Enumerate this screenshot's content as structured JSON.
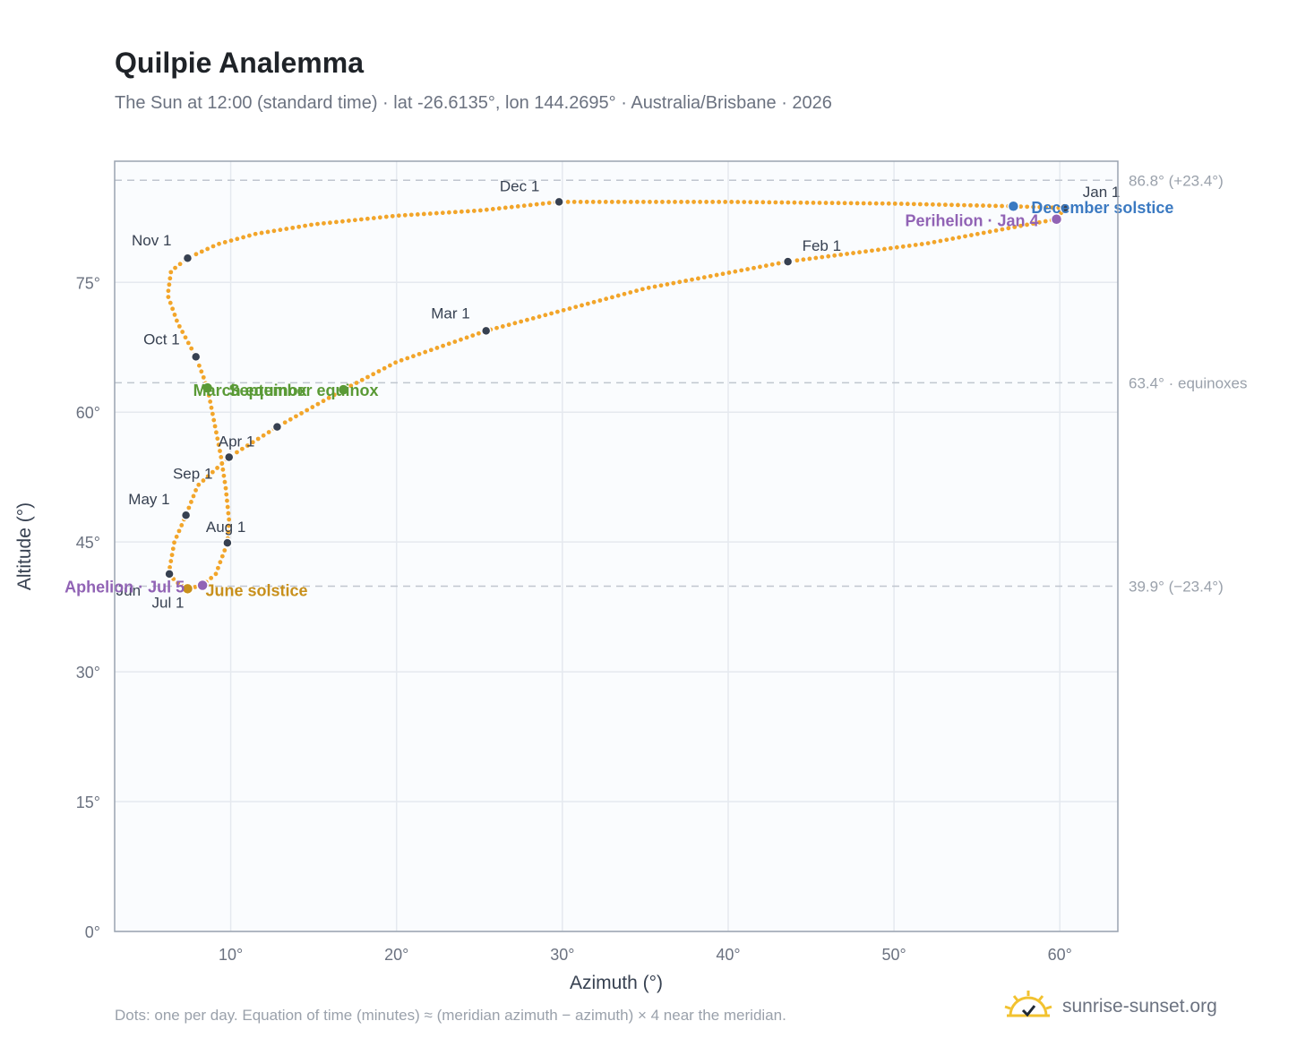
{
  "header": {
    "title": "Quilpie Analemma",
    "subtitle": "The Sun at 12:00 (standard time) · lat -26.6135°, lon 144.2695° · Australia/Brisbane · 2026"
  },
  "footer": {
    "note": "Dots: one per day. Equation of time (minutes) ≈ (meridian azimuth − azimuth) × 4 near the meridian.",
    "brand": "sunrise-sunset.org"
  },
  "colors": {
    "path": "#f2a52a",
    "month_marker": "#374151",
    "solstice_dec": "#3b7ac2",
    "solstice_jun": "#c8901c",
    "equinox": "#5a9a36",
    "apsis": "#9163b5",
    "ref_line": "#c0c6cf",
    "grid": "#e5e9ef",
    "plot_bg": "#fafcfe"
  },
  "chart_data": {
    "type": "scatter",
    "xlabel": "Azimuth (°)",
    "ylabel": "Altitude (°)",
    "xlim": [
      3,
      63.5
    ],
    "ylim": [
      0,
      89
    ],
    "xticks": [
      10,
      20,
      30,
      40,
      50,
      60
    ],
    "yticks": [
      0,
      15,
      30,
      45,
      60,
      75
    ],
    "xtick_labels": [
      "10°",
      "20°",
      "30°",
      "40°",
      "50°",
      "60°"
    ],
    "ytick_labels": [
      "0°",
      "15°",
      "30°",
      "45°",
      "60°",
      "75°"
    ],
    "grid": true,
    "reference_lines": [
      {
        "y": 86.8,
        "label": "86.8° (+23.4°)"
      },
      {
        "y": 63.4,
        "label": "63.4° · equinoxes"
      },
      {
        "y": 39.9,
        "label": "39.9° (−23.4°)"
      }
    ],
    "path_points": [
      [
        60.3,
        83.6
      ],
      [
        59.8,
        82.3
      ],
      [
        52,
        79.5
      ],
      [
        43.6,
        77.4
      ],
      [
        35,
        74.3
      ],
      [
        25.4,
        69.4
      ],
      [
        20,
        65.8
      ],
      [
        16.8,
        62.6
      ],
      [
        12.8,
        58.3
      ],
      [
        9.9,
        54.8
      ],
      [
        8,
        51.5
      ],
      [
        7.3,
        48.1
      ],
      [
        6.6,
        45
      ],
      [
        6.3,
        41.8
      ],
      [
        6.6,
        40.5
      ],
      [
        7.4,
        39.6
      ],
      [
        8.3,
        40
      ],
      [
        9.1,
        41.3
      ],
      [
        9.8,
        44.9
      ],
      [
        9.9,
        47.5
      ],
      [
        9.7,
        51.2
      ],
      [
        9.4,
        55
      ],
      [
        8.6,
        62.8
      ],
      [
        7.9,
        66.4
      ],
      [
        6.8,
        70.3
      ],
      [
        6.2,
        73.5
      ],
      [
        6.4,
        76.3
      ],
      [
        7.4,
        77.8
      ],
      [
        9.2,
        79.4
      ],
      [
        11.5,
        80.6
      ],
      [
        15,
        81.7
      ],
      [
        20,
        82.7
      ],
      [
        25,
        83.3
      ],
      [
        29.8,
        84.3
      ],
      [
        40,
        84.3
      ],
      [
        50,
        84.1
      ],
      [
        57,
        83.8
      ],
      [
        60.3,
        83.6
      ]
    ],
    "month_markers": [
      {
        "label": "Jan 1",
        "x": 60.3,
        "y": 83.6
      },
      {
        "label": "Feb 1",
        "x": 43.6,
        "y": 77.4
      },
      {
        "label": "Mar 1",
        "x": 25.4,
        "y": 69.4
      },
      {
        "label": "Apr 1",
        "x": 9.9,
        "y": 54.8
      },
      {
        "label": "May 1",
        "x": 7.3,
        "y": 48.1
      },
      {
        "label": "Jun",
        "x": 6.3,
        "y": 41.3
      },
      {
        "label": "Jul 1",
        "x": 7.4,
        "y": 39.5
      },
      {
        "label": "Aug 1",
        "x": 9.8,
        "y": 44.9
      },
      {
        "label": "Sep 1",
        "x": 12.8,
        "y": 58.3
      },
      {
        "label": "Oct 1",
        "x": 7.9,
        "y": 66.4
      },
      {
        "label": "Nov 1",
        "x": 7.4,
        "y": 77.8
      },
      {
        "label": "Dec 1",
        "x": 29.8,
        "y": 84.3
      }
    ],
    "events": [
      {
        "label": "December solstice",
        "x": 57.2,
        "y": 83.8,
        "kind": "solstice_dec"
      },
      {
        "label": "Perihelion · Jan 4",
        "x": 59.8,
        "y": 82.3,
        "kind": "apsis"
      },
      {
        "label": "March equinox",
        "x": 8.6,
        "y": 62.8,
        "kind": "equinox"
      },
      {
        "label": "September equinox",
        "x": 16.8,
        "y": 62.6,
        "kind": "equinox"
      },
      {
        "label": "June solstice",
        "x": 7.4,
        "y": 39.6,
        "kind": "solstice_jun"
      },
      {
        "label": "Aphelion · Jul 5",
        "x": 8.3,
        "y": 40,
        "kind": "apsis"
      }
    ]
  }
}
